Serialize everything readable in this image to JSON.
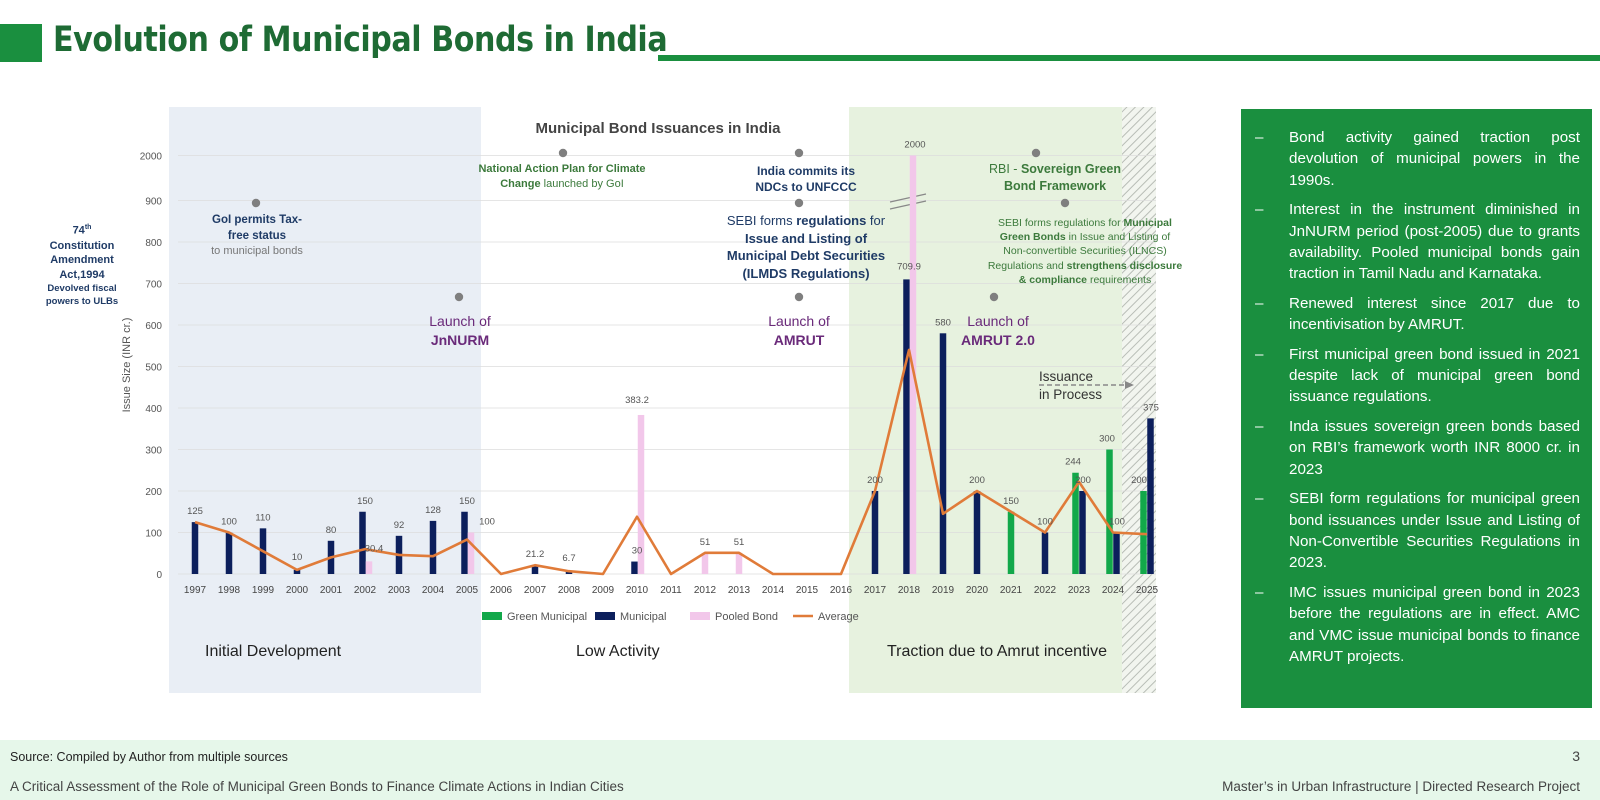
{
  "header": {
    "title": "Evolution of Municipal Bonds in India"
  },
  "colors": {
    "green_municipal": "#12a84a",
    "municipal": "#0c1f5c",
    "pooled_bond": "#f2c7ea",
    "average": "#e07b39",
    "brand_green": "#1a8f3f"
  },
  "phases": {
    "initial": "Initial Development",
    "low": "Low Activity",
    "traction": "Traction due to Amrut incentive"
  },
  "annotations": {
    "const_line1": "74",
    "const_sup": "th",
    "const_line2": "Constitution",
    "const_line3": "Amendment",
    "const_line4": "Act,1994",
    "const_line5": "Devolved fiscal",
    "const_line6": "powers to ULBs",
    "taxfree_line1": "GoI permits Tax-",
    "taxfree_line2": "free status",
    "taxfree_line3": "to municipal bonds",
    "napcc_bold1": "National Action Plan for Climate",
    "napcc_bold2": "Change",
    "napcc_rest": " launched by GoI",
    "ndc_line1": "India commits its",
    "ndc_line2": "NDCs to UNFCCC",
    "rbi_pre": "RBI - ",
    "rbi_bold1": "Sovereign Green",
    "rbi_bold2": "Bond Framework",
    "sebi1_pre": "SEBI forms ",
    "sebi1_bold": "regulations",
    "sebi1_post": " for",
    "sebi1_line2": "Issue and Listing of",
    "sebi1_line3": "Municipal Debt Securities",
    "sebi1_line4": "(ILMDS Regulations)",
    "sebi2_pre": "SEBI forms regulations for ",
    "sebi2_bold1": "Municipal",
    "sebi2_bold2": "Green Bonds",
    "sebi2_post2": " in Issue and Listing of",
    "sebi2_line3": "Non-convertible Securities (ILNCS)",
    "sebi2_line4a": "Regulations and ",
    "sebi2_bold4": "strengthens disclosure",
    "sebi2_bold5": "& compliance",
    "sebi2_post5": " requirements",
    "launch_word": "Launch of",
    "jnnurm": "JnNURM",
    "amrut": "AMRUT",
    "amrut2": "AMRUT 2.0",
    "issuance_line1": "Issuance",
    "issuance_line2": "in Process"
  },
  "chart_data": {
    "type": "bar",
    "title": "Municipal Bond Issuances in India",
    "ylabel": "Issue Size (INR cr.)",
    "xlabel": "",
    "categories": [
      "1997",
      "1998",
      "1999",
      "2000",
      "2001",
      "2002",
      "2003",
      "2004",
      "2005",
      "2006",
      "2007",
      "2008",
      "2009",
      "2010",
      "2011",
      "2012",
      "2013",
      "2014",
      "2015",
      "2016",
      "2017",
      "2018",
      "2019",
      "2020",
      "2021",
      "2022",
      "2023",
      "2024",
      "2025"
    ],
    "yticks": [
      "0",
      "100",
      "200",
      "300",
      "400",
      "500",
      "600",
      "700",
      "800",
      "900",
      "2000"
    ],
    "ylim": [
      0,
      2000
    ],
    "axis_break": "between 900 and 2000",
    "grid": true,
    "legend_position": "bottom",
    "series": [
      {
        "name": "Green Municipal",
        "color": "#12a84a",
        "values": [
          0,
          0,
          0,
          0,
          0,
          0,
          0,
          0,
          0,
          0,
          0,
          0,
          0,
          0,
          0,
          0,
          0,
          0,
          0,
          0,
          0,
          0,
          0,
          0,
          150,
          0,
          244,
          300,
          200
        ]
      },
      {
        "name": "Municipal",
        "color": "#0c1f5c",
        "values": [
          125,
          100,
          110,
          10,
          80,
          150,
          92,
          128,
          150,
          0,
          21.2,
          6.7,
          0,
          30,
          0,
          0,
          0,
          0,
          0,
          0,
          200,
          709.9,
          580,
          200,
          0,
          100,
          200,
          100,
          375
        ]
      },
      {
        "name": "Pooled Bond",
        "color": "#f2c7ea",
        "values": [
          0,
          0,
          0,
          0,
          0,
          30.4,
          0,
          0,
          100,
          0,
          0,
          0,
          0,
          383.2,
          0,
          51,
          51,
          0,
          0,
          0,
          0,
          2000,
          0,
          0,
          0,
          0,
          0,
          0,
          0
        ]
      },
      {
        "name": "Average",
        "color": "#e07b39",
        "type": "line",
        "values": [
          125,
          100,
          55,
          10,
          40,
          60,
          46,
          43,
          83,
          0,
          21.2,
          6.7,
          0,
          138,
          0,
          51,
          51,
          0,
          0,
          0,
          200,
          540,
          145,
          200,
          150,
          100,
          222,
          100,
          96
        ]
      }
    ],
    "data_labels": [
      {
        "year": "1997",
        "text": "125"
      },
      {
        "year": "1998",
        "text": "100"
      },
      {
        "year": "1999",
        "text": "110"
      },
      {
        "year": "2000",
        "text": "10"
      },
      {
        "year": "2001",
        "text": "80"
      },
      {
        "year": "2002",
        "text": "150"
      },
      {
        "year": "2002",
        "text": "30.4"
      },
      {
        "year": "2003",
        "text": "92"
      },
      {
        "year": "2004",
        "text": "128"
      },
      {
        "year": "2005",
        "text": "150"
      },
      {
        "year": "2005",
        "text": "100"
      },
      {
        "year": "2007",
        "text": "21.2"
      },
      {
        "year": "2008",
        "text": "6.7"
      },
      {
        "year": "2010",
        "text": "383.2"
      },
      {
        "year": "2010",
        "text": "30"
      },
      {
        "year": "2012",
        "text": "51"
      },
      {
        "year": "2013",
        "text": "51"
      },
      {
        "year": "2017",
        "text": "200"
      },
      {
        "year": "2018",
        "text": "2000"
      },
      {
        "year": "2018",
        "text": "709.9"
      },
      {
        "year": "2019",
        "text": "580"
      },
      {
        "year": "2020",
        "text": "200"
      },
      {
        "year": "2021",
        "text": "150"
      },
      {
        "year": "2022",
        "text": "100"
      },
      {
        "year": "2023",
        "text": "244"
      },
      {
        "year": "2023",
        "text": "200"
      },
      {
        "year": "2024",
        "text": "300"
      },
      {
        "year": "2024",
        "text": "100"
      },
      {
        "year": "2025",
        "text": "200"
      },
      {
        "year": "2025",
        "text": "375"
      }
    ]
  },
  "side_panel": {
    "items": [
      "Bond activity gained traction post devolution of municipal powers in the 1990s.",
      "Interest in the instrument diminished in JnNURM period (post-2005) due to grants availability. Pooled municipal bonds gain traction in Tamil Nadu and Karnataka.",
      "Renewed interest since 2017 due to incentivisation by AMRUT.",
      "First municipal green bond issued in 2021 despite lack of municipal green bond issuance regulations.",
      "Inda issues sovereign green bonds based on RBI’s framework worth INR 8000 cr. in 2023",
      "SEBI form regulations for municipal green bond issuances under Issue and Listing of Non-Convertible Securities Regulations in 2023.",
      "IMC issues municipal green bond in 2023 before the regulations are in effect. AMC and VMC issue municipal bonds to finance AMRUT projects."
    ]
  },
  "footer": {
    "source": "Source: Compiled by Author from multiple sources",
    "page_number": "3",
    "left": "A Critical Assessment of the Role of Municipal Green Bonds to Finance Climate Actions in Indian Cities",
    "right": "Master’s in Urban Infrastructure | Directed Research Project"
  }
}
